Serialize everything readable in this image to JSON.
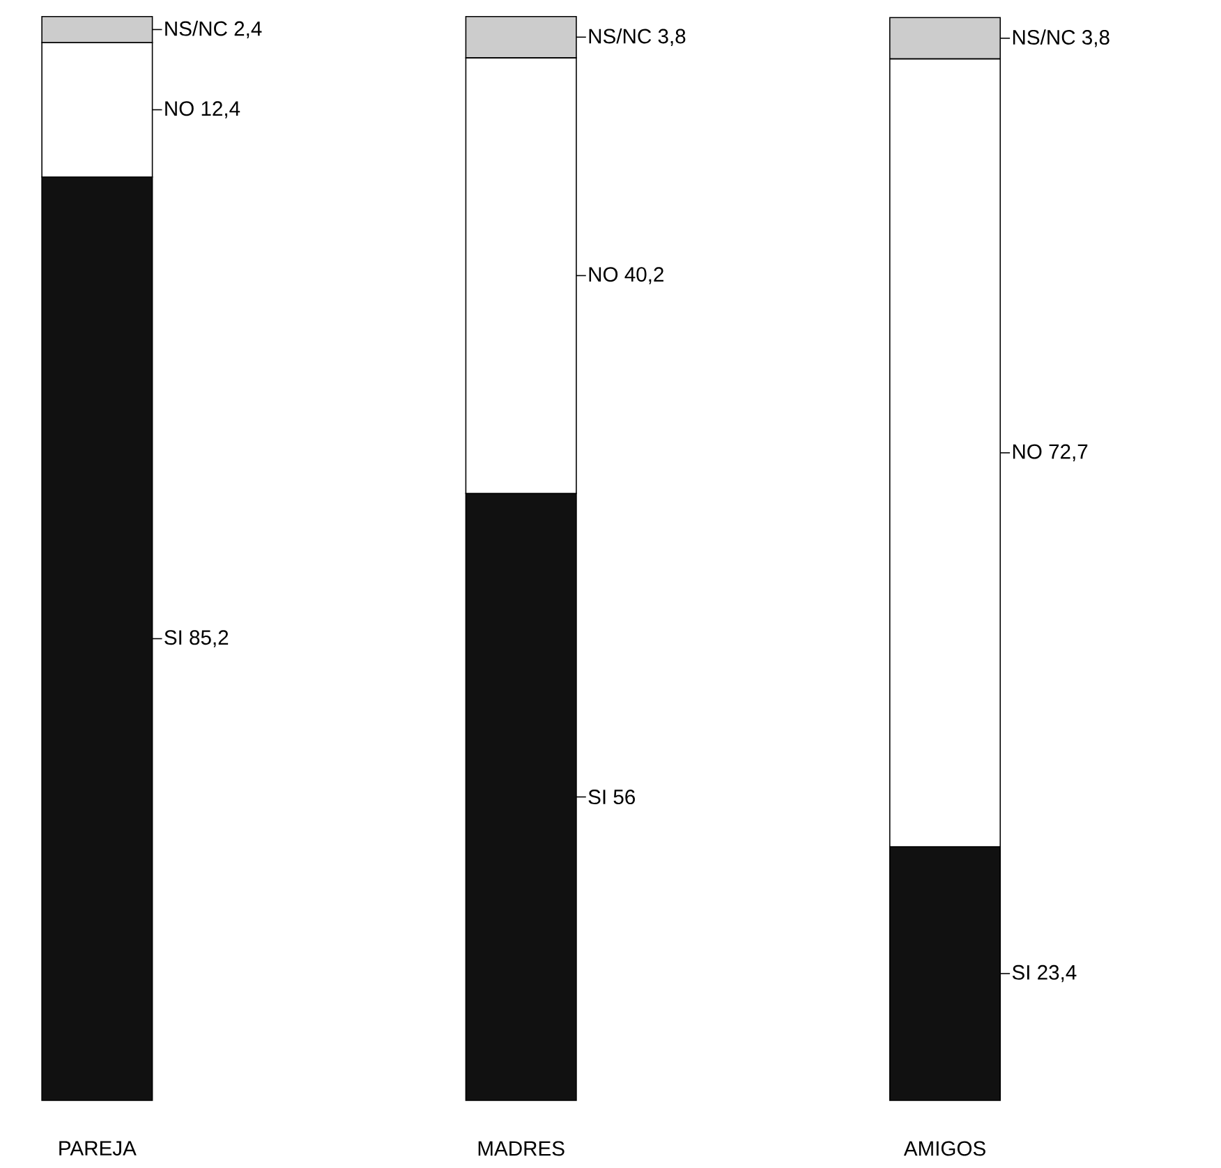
{
  "chart_data": {
    "type": "bar",
    "stacked": true,
    "categories": [
      "PAREJA",
      "MADRES",
      "AMIGOS"
    ],
    "series": [
      {
        "color": "#111111",
        "values": [
          85.2,
          56,
          23.4
        ],
        "value_labels": [
          "SI 85,2",
          "SI 56",
          "SI 23,4"
        ]
      },
      {
        "color": "#ffffff",
        "values": [
          12.4,
          40.2,
          72.7
        ],
        "value_labels": [
          "NO 12,4",
          "NO 40,2",
          "NO 72,7"
        ]
      },
      {
        "color": "#cccccc",
        "values": [
          2.4,
          3.8,
          3.8
        ],
        "value_labels": [
          "NS/NC 2,4",
          "NS/NC 3,8",
          "NS/NC 3,8"
        ]
      }
    ]
  }
}
